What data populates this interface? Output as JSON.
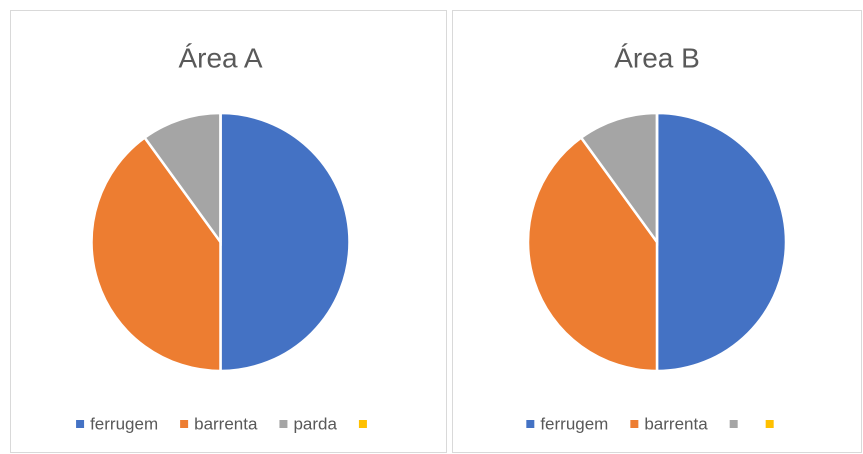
{
  "chart_data": [
    {
      "type": "pie",
      "title": "Área A",
      "categories": [
        "ferrugem",
        "barrenta",
        "parda",
        null
      ],
      "values": [
        50,
        40,
        10,
        0
      ],
      "colors": [
        "#4472c4",
        "#ed7d31",
        "#a5a5a5",
        "#ffc000"
      ]
    },
    {
      "type": "pie",
      "title": "Área B",
      "categories": [
        "ferrugem",
        "barrenta",
        null,
        null
      ],
      "values": [
        50,
        40,
        10,
        0
      ],
      "colors": [
        "#4472c4",
        "#ed7d31",
        "#a5a5a5",
        "#ffc000"
      ]
    }
  ]
}
